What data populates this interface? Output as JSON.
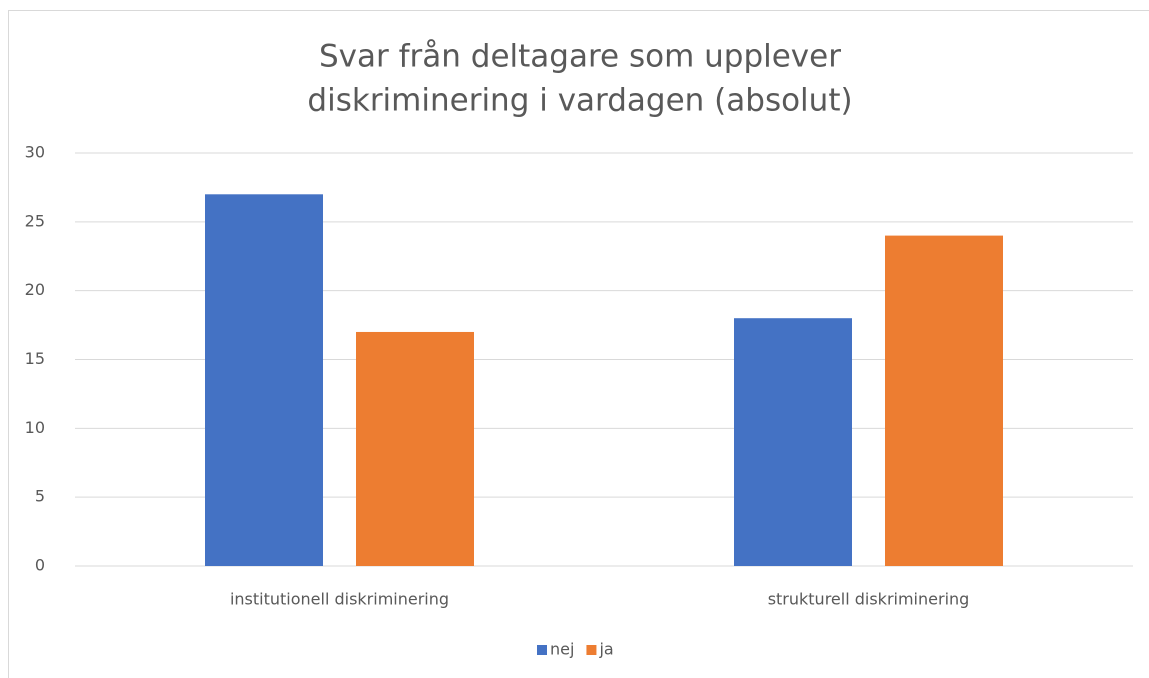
{
  "chart_data": {
    "type": "bar",
    "title": [
      "Svar från deltagare som upplever",
      "diskriminering i vardagen (absolut)"
    ],
    "categories": [
      "institutionell diskriminering",
      "strukturell diskriminering"
    ],
    "series": [
      {
        "name": "nej",
        "color": "#4472c4",
        "values": [
          27,
          18
        ]
      },
      {
        "name": "ja",
        "color": "#ed7d31",
        "values": [
          17,
          24
        ]
      }
    ],
    "ylim": [
      0,
      30
    ],
    "yticks": [
      0,
      5,
      10,
      15,
      20,
      25,
      30
    ],
    "grid": true,
    "legend": "bottom"
  }
}
